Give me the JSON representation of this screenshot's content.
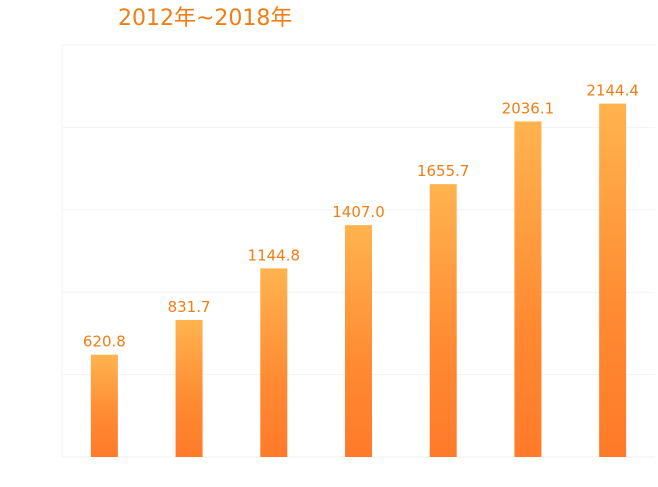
{
  "chart_data": {
    "type": "bar",
    "title": "2012年~2018年",
    "values": [
      620.8,
      831.7,
      1144.8,
      1407.0,
      1655.7,
      2036.1,
      2144.4
    ],
    "value_labels": [
      "620.8",
      "831.7",
      "1144.8",
      "1407.0",
      "1655.7",
      "2036.1",
      "2144.4"
    ],
    "ylim": [
      0,
      2500
    ],
    "grid": true,
    "colors": {
      "bar_top": "#ffb34f",
      "bar_bottom": "#ff7a2a",
      "label": "#f07e14",
      "grid": "#f2f2f2"
    }
  }
}
